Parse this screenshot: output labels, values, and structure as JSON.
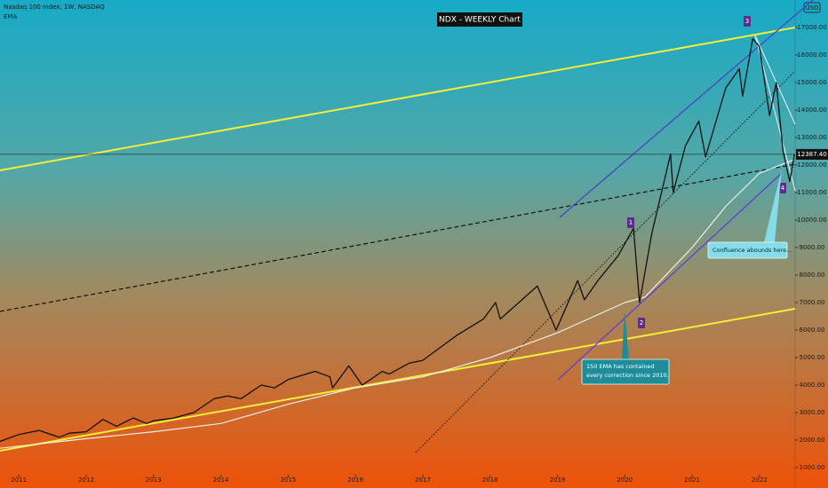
{
  "chart_data": {
    "type": "line",
    "title": "NDX - WEEKLY Chart",
    "currency": "USD",
    "series": [
      {
        "name": "Nasdaq 100 Index, 1W, NASDAQ",
        "color": "#111111",
        "x": [
          2010.72,
          2011.0,
          2011.3,
          2011.6,
          2011.75,
          2012.0,
          2012.25,
          2012.45,
          2012.7,
          2012.9,
          2013.0,
          2013.3,
          2013.6,
          2013.9,
          2014.1,
          2014.3,
          2014.6,
          2014.8,
          2015.0,
          2015.4,
          2015.62,
          2015.66,
          2015.9,
          2016.1,
          2016.4,
          2016.5,
          2016.8,
          2017.0,
          2017.5,
          2017.9,
          2018.08,
          2018.15,
          2018.7,
          2018.98,
          2019.3,
          2019.4,
          2019.6,
          2019.9,
          2020.13,
          2020.22,
          2020.4,
          2020.68,
          2020.72,
          2020.9,
          2021.1,
          2021.2,
          2021.5,
          2021.7,
          2021.75,
          2021.9,
          2022.0,
          2022.15,
          2022.25,
          2022.35,
          2022.45,
          2022.52
        ],
        "values": [
          1950,
          2200,
          2350,
          2100,
          2250,
          2300,
          2750,
          2500,
          2800,
          2600,
          2700,
          2800,
          3000,
          3500,
          3600,
          3500,
          4000,
          3900,
          4200,
          4500,
          4300,
          3900,
          4700,
          4000,
          4500,
          4400,
          4800,
          4900,
          5800,
          6400,
          7000,
          6400,
          7600,
          6000,
          7800,
          7100,
          7800,
          8700,
          9700,
          7000,
          9500,
          12400,
          11000,
          12700,
          13600,
          12300,
          14800,
          15500,
          14500,
          16600,
          16300,
          13800,
          15000,
          12500,
          11400,
          12387.4
        ]
      },
      {
        "name": "EMA",
        "color": "#e8f0e8",
        "x": [
          2010.72,
          2012.0,
          2013.0,
          2014.0,
          2015.0,
          2016.0,
          2017.0,
          2018.0,
          2019.0,
          2020.0,
          2020.3,
          2021.0,
          2021.5,
          2022.0,
          2022.52
        ],
        "values": [
          1700,
          2050,
          2300,
          2600,
          3300,
          3900,
          4300,
          5000,
          5900,
          7000,
          7200,
          9000,
          10500,
          11700,
          12200
        ]
      }
    ],
    "last_price": {
      "value": 12387.4,
      "label": "12387.40"
    },
    "xlim": [
      2010.72,
      2022.53
    ],
    "xticks": [
      2011,
      2012,
      2013,
      2014,
      2015,
      2016,
      2017,
      2018,
      2019,
      2020,
      2021,
      2022
    ],
    "ylim": [
      740,
      18000
    ],
    "yticks": [
      {
        "value": 1000,
        "label": "1000.00"
      },
      {
        "value": 2000,
        "label": "2000.00"
      },
      {
        "value": 3000,
        "label": "3000.00"
      },
      {
        "value": 4000,
        "label": "4000.00"
      },
      {
        "value": 5000,
        "label": "5000.00"
      },
      {
        "value": 6000,
        "label": "6000.00"
      },
      {
        "value": 7000,
        "label": "7000.00"
      },
      {
        "value": 8000,
        "label": "8000.00"
      },
      {
        "value": 9000,
        "label": "9000.00"
      },
      {
        "value": 10000,
        "label": "10000.00"
      },
      {
        "value": 11000,
        "label": "11000.00"
      },
      {
        "value": 12000,
        "label": "12000.00"
      },
      {
        "value": 13000,
        "label": "13000.00"
      },
      {
        "value": 14000,
        "label": "14000.00"
      },
      {
        "value": 15000,
        "label": "15000.00"
      },
      {
        "value": 16000,
        "label": "16000.00"
      },
      {
        "value": 17000,
        "label": "17000.00"
      }
    ],
    "markers": [
      "1",
      "2",
      "3",
      "4"
    ],
    "annotations": [
      [
        "150 EMA has contained",
        "every correction since 2010."
      ],
      [
        "Confluence abounds here..."
      ]
    ]
  }
}
